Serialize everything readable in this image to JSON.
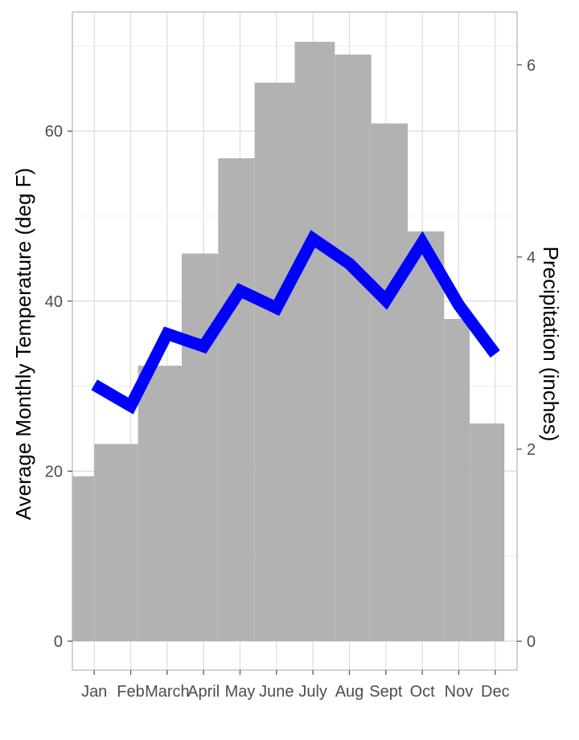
{
  "chart_data": {
    "type": "bar+line",
    "categories": [
      "Jan",
      "Feb",
      "March",
      "April",
      "May",
      "June",
      "July",
      "Aug",
      "Sept",
      "Oct",
      "Nov",
      "Dec"
    ],
    "bar_series": {
      "values": [
        19.4,
        23.2,
        32.4,
        45.6,
        56.8,
        65.7,
        70.5,
        69.0,
        60.9,
        48.2,
        37.9,
        25.6
      ],
      "color": "#b2b2b2"
    },
    "line_series": {
      "values": [
        2.67,
        2.45,
        3.2,
        3.07,
        3.65,
        3.47,
        4.19,
        3.93,
        3.55,
        4.15,
        3.5,
        2.99
      ],
      "color": "#0000ff"
    },
    "x_positions": [
      1,
      2,
      3,
      4,
      5,
      6,
      7,
      8,
      9,
      10,
      11,
      12
    ],
    "bar_x_values": [
      0.81,
      1.71,
      2.7,
      3.7,
      4.79,
      5.76,
      6.87,
      7.89,
      9.03,
      10.09,
      10.87,
      11.63
    ],
    "bar_edges": [
      0.4,
      1.0,
      2.2,
      3.4,
      4.4,
      5.4,
      6.5,
      7.6,
      8.6,
      9.6,
      10.6,
      11.3,
      12.25
    ],
    "xlim": [
      0.4,
      12.6
    ],
    "y_left": {
      "label": "Average Monthly Temperature (deg F)",
      "ticks": [
        0,
        20,
        40,
        60
      ],
      "lim": [
        -3.4,
        74.0
      ]
    },
    "y_right": {
      "label": "Precipitation (inches)",
      "ticks": [
        0,
        2,
        4,
        6
      ],
      "lim": [
        -0.3,
        6.55
      ]
    },
    "grid": true,
    "legend": "none"
  }
}
